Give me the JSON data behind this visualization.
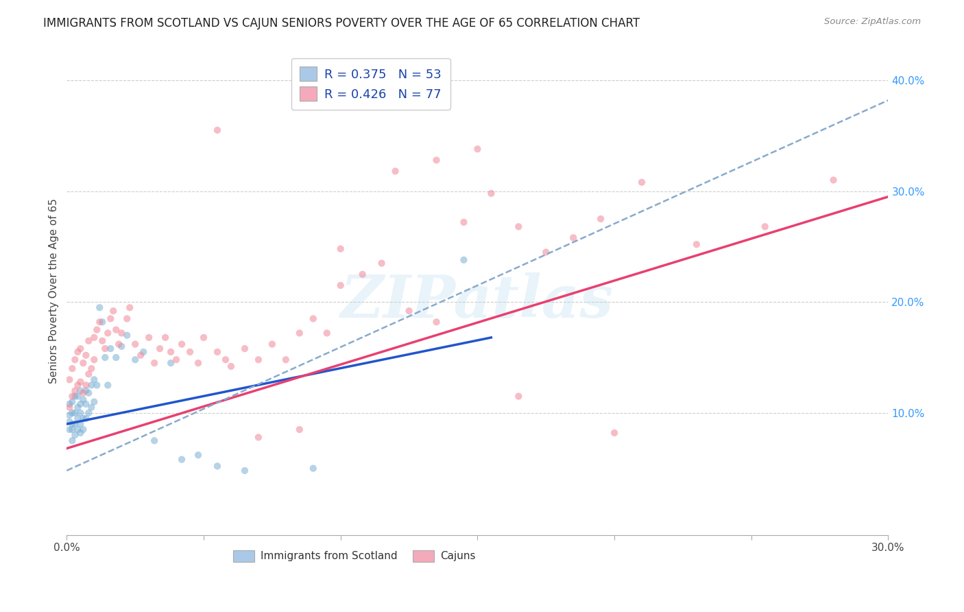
{
  "title": "IMMIGRANTS FROM SCOTLAND VS CAJUN SENIORS POVERTY OVER THE AGE OF 65 CORRELATION CHART",
  "source": "Source: ZipAtlas.com",
  "ylabel": "Seniors Poverty Over the Age of 65",
  "watermark": "ZIPatlas",
  "legend_entries": [
    {
      "label_r": "R = 0.375",
      "label_n": "N = 53",
      "color": "#aac9e8"
    },
    {
      "label_r": "R = 0.426",
      "label_n": "N = 77",
      "color": "#f4aabb"
    }
  ],
  "xlim": [
    0.0,
    0.3
  ],
  "ylim": [
    -0.01,
    0.43
  ],
  "right_yticks": [
    0.1,
    0.2,
    0.3,
    0.4
  ],
  "right_yticklabels": [
    "10.0%",
    "20.0%",
    "30.0%",
    "40.0%"
  ],
  "bottom_xticks": [
    0.0,
    0.05,
    0.1,
    0.15,
    0.2,
    0.25,
    0.3
  ],
  "bottom_xticklabels": [
    "0.0%",
    "",
    "",
    "",
    "",
    "",
    "30.0%"
  ],
  "grid_color": "#cccccc",
  "bg_color": "#ffffff",
  "scatter_blue_color": "#7bafd4",
  "scatter_pink_color": "#f08898",
  "line_blue_color": "#2255cc",
  "line_pink_color": "#e84070",
  "line_dash_color": "#88aacc",
  "scatter_alpha": 0.55,
  "scatter_size": 55,
  "blue_points_x": [
    0.001,
    0.001,
    0.001,
    0.001,
    0.002,
    0.002,
    0.002,
    0.002,
    0.002,
    0.003,
    0.003,
    0.003,
    0.003,
    0.004,
    0.004,
    0.004,
    0.004,
    0.005,
    0.005,
    0.005,
    0.005,
    0.005,
    0.006,
    0.006,
    0.006,
    0.007,
    0.007,
    0.007,
    0.008,
    0.008,
    0.009,
    0.009,
    0.01,
    0.01,
    0.011,
    0.012,
    0.013,
    0.014,
    0.015,
    0.016,
    0.018,
    0.02,
    0.022,
    0.025,
    0.028,
    0.032,
    0.038,
    0.042,
    0.048,
    0.055,
    0.065,
    0.09,
    0.145
  ],
  "blue_points_y": [
    0.085,
    0.092,
    0.098,
    0.108,
    0.075,
    0.085,
    0.09,
    0.1,
    0.11,
    0.08,
    0.09,
    0.1,
    0.115,
    0.085,
    0.095,
    0.105,
    0.115,
    0.082,
    0.09,
    0.1,
    0.108,
    0.12,
    0.085,
    0.095,
    0.112,
    0.095,
    0.108,
    0.12,
    0.1,
    0.118,
    0.105,
    0.125,
    0.11,
    0.13,
    0.125,
    0.195,
    0.182,
    0.15,
    0.125,
    0.158,
    0.15,
    0.16,
    0.17,
    0.148,
    0.155,
    0.075,
    0.145,
    0.058,
    0.062,
    0.052,
    0.048,
    0.05,
    0.238
  ],
  "pink_points_x": [
    0.001,
    0.001,
    0.002,
    0.002,
    0.003,
    0.003,
    0.004,
    0.004,
    0.005,
    0.005,
    0.006,
    0.006,
    0.007,
    0.007,
    0.008,
    0.008,
    0.009,
    0.01,
    0.01,
    0.011,
    0.012,
    0.013,
    0.014,
    0.015,
    0.016,
    0.017,
    0.018,
    0.019,
    0.02,
    0.022,
    0.023,
    0.025,
    0.027,
    0.03,
    0.032,
    0.034,
    0.036,
    0.038,
    0.04,
    0.042,
    0.045,
    0.048,
    0.05,
    0.055,
    0.058,
    0.06,
    0.065,
    0.07,
    0.075,
    0.08,
    0.085,
    0.09,
    0.095,
    0.1,
    0.108,
    0.115,
    0.125,
    0.135,
    0.145,
    0.155,
    0.165,
    0.175,
    0.185,
    0.195,
    0.21,
    0.23,
    0.255,
    0.28,
    0.2,
    0.12,
    0.135,
    0.15,
    0.165,
    0.1,
    0.055,
    0.085,
    0.07
  ],
  "pink_points_y": [
    0.105,
    0.13,
    0.115,
    0.14,
    0.12,
    0.148,
    0.125,
    0.155,
    0.128,
    0.158,
    0.118,
    0.145,
    0.125,
    0.152,
    0.135,
    0.165,
    0.14,
    0.148,
    0.168,
    0.175,
    0.182,
    0.165,
    0.158,
    0.172,
    0.185,
    0.192,
    0.175,
    0.162,
    0.172,
    0.185,
    0.195,
    0.162,
    0.152,
    0.168,
    0.145,
    0.158,
    0.168,
    0.155,
    0.148,
    0.162,
    0.155,
    0.145,
    0.168,
    0.155,
    0.148,
    0.142,
    0.158,
    0.148,
    0.162,
    0.148,
    0.172,
    0.185,
    0.172,
    0.215,
    0.225,
    0.235,
    0.192,
    0.182,
    0.272,
    0.298,
    0.268,
    0.245,
    0.258,
    0.275,
    0.308,
    0.252,
    0.268,
    0.31,
    0.082,
    0.318,
    0.328,
    0.338,
    0.115,
    0.248,
    0.355,
    0.085,
    0.078
  ],
  "blue_line_x": [
    0.0,
    0.155
  ],
  "blue_line_y": [
    0.09,
    0.168
  ],
  "pink_line_x": [
    0.0,
    0.3
  ],
  "pink_line_y": [
    0.068,
    0.295
  ],
  "dash_line_x": [
    0.0,
    0.3
  ],
  "dash_line_y": [
    0.048,
    0.382
  ],
  "bottom_legend": [
    {
      "label": "Immigrants from Scotland",
      "color": "#aac9e8"
    },
    {
      "label": "Cajuns",
      "color": "#f4aabb"
    }
  ]
}
